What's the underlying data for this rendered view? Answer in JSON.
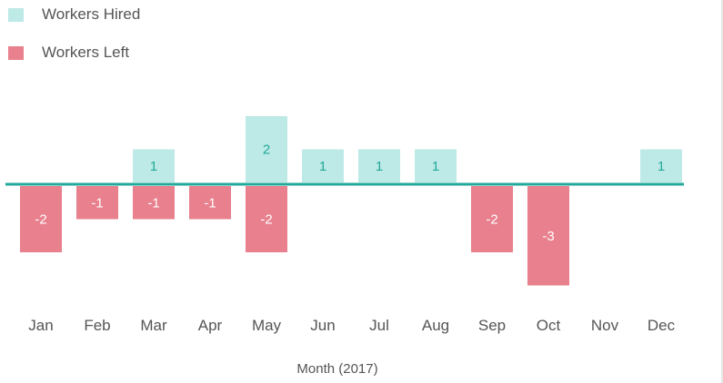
{
  "chart_data": {
    "type": "bar",
    "categories": [
      "Jan",
      "Feb",
      "Mar",
      "Apr",
      "May",
      "Jun",
      "Jul",
      "Aug",
      "Sep",
      "Oct",
      "Nov",
      "Dec"
    ],
    "series": [
      {
        "name": "Workers Hired",
        "values": [
          0,
          0,
          1,
          0,
          2,
          1,
          1,
          1,
          0,
          0,
          0,
          1
        ],
        "color": "#bde9e6",
        "label_color": "#22a99a"
      },
      {
        "name": "Workers Left",
        "values": [
          -2,
          -1,
          -1,
          -1,
          -2,
          0,
          0,
          0,
          -2,
          -3,
          0,
          0
        ],
        "color": "#e8808e",
        "label_color": "#ffffff"
      }
    ],
    "xlabel": "Month (2017)",
    "ylabel": "",
    "ylim": [
      -3,
      2
    ],
    "zero_line_color": "#22a99a",
    "legend_position": "top-left",
    "grid": false
  }
}
